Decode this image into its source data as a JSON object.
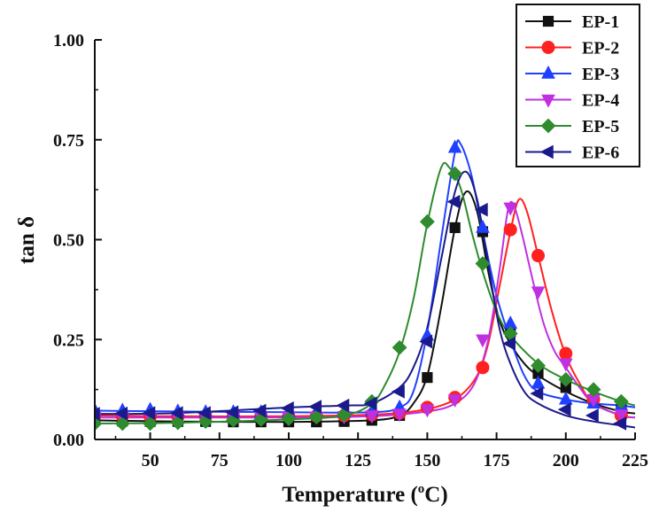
{
  "chart_data": {
    "type": "line",
    "xlabel": "Temperature (",
    "xlabel_sup": "o",
    "xlabel_unit": "C)",
    "ylabel": "tan δ",
    "xlim": [
      30,
      225
    ],
    "ylim": [
      0,
      1.0
    ],
    "x_ticks": [
      50,
      75,
      100,
      125,
      150,
      175,
      200,
      225
    ],
    "x_tick_labels": [
      "50",
      "75",
      "100",
      "125",
      "150",
      "175",
      "200",
      "225"
    ],
    "y_ticks": [
      0,
      0.25,
      0.5,
      0.75,
      1.0
    ],
    "y_tick_labels": [
      "0.00",
      "0.25",
      "0.50",
      "0.75",
      "1.00"
    ],
    "legend_position": "top-right",
    "series": [
      {
        "name": "EP-1",
        "color": "#111111",
        "marker": "square",
        "curve": [
          [
            30,
            0.048
          ],
          [
            60,
            0.045
          ],
          [
            100,
            0.044
          ],
          [
            130,
            0.048
          ],
          [
            140,
            0.06
          ],
          [
            145,
            0.09
          ],
          [
            150,
            0.16
          ],
          [
            155,
            0.33
          ],
          [
            160,
            0.53
          ],
          [
            164,
            0.62
          ],
          [
            168,
            0.57
          ],
          [
            172,
            0.42
          ],
          [
            176,
            0.3
          ],
          [
            180,
            0.24
          ],
          [
            185,
            0.19
          ],
          [
            190,
            0.16
          ],
          [
            200,
            0.12
          ],
          [
            210,
            0.09
          ],
          [
            220,
            0.07
          ],
          [
            225,
            0.065
          ]
        ],
        "points": [
          [
            30,
            0.048
          ],
          [
            40,
            0.046
          ],
          [
            50,
            0.045
          ],
          [
            60,
            0.045
          ],
          [
            70,
            0.045
          ],
          [
            80,
            0.044
          ],
          [
            90,
            0.044
          ],
          [
            100,
            0.044
          ],
          [
            110,
            0.044
          ],
          [
            120,
            0.045
          ],
          [
            130,
            0.048
          ],
          [
            140,
            0.06
          ],
          [
            150,
            0.155
          ],
          [
            160,
            0.53
          ],
          [
            170,
            0.52
          ],
          [
            180,
            0.27
          ],
          [
            190,
            0.165
          ],
          [
            200,
            0.13
          ],
          [
            210,
            0.1
          ],
          [
            220,
            0.075
          ]
        ]
      },
      {
        "name": "EP-2",
        "color": "#ff2020",
        "marker": "circle",
        "curve": [
          [
            30,
            0.06
          ],
          [
            60,
            0.058
          ],
          [
            100,
            0.058
          ],
          [
            130,
            0.062
          ],
          [
            145,
            0.07
          ],
          [
            155,
            0.085
          ],
          [
            162,
            0.11
          ],
          [
            168,
            0.16
          ],
          [
            172,
            0.24
          ],
          [
            176,
            0.38
          ],
          [
            180,
            0.52
          ],
          [
            183,
            0.6
          ],
          [
            186,
            0.57
          ],
          [
            190,
            0.46
          ],
          [
            195,
            0.32
          ],
          [
            200,
            0.21
          ],
          [
            205,
            0.14
          ],
          [
            210,
            0.09
          ],
          [
            220,
            0.06
          ],
          [
            225,
            0.055
          ]
        ],
        "points": [
          [
            30,
            0.06
          ],
          [
            40,
            0.059
          ],
          [
            50,
            0.058
          ],
          [
            60,
            0.058
          ],
          [
            70,
            0.058
          ],
          [
            80,
            0.058
          ],
          [
            90,
            0.058
          ],
          [
            100,
            0.058
          ],
          [
            110,
            0.059
          ],
          [
            120,
            0.06
          ],
          [
            130,
            0.062
          ],
          [
            140,
            0.066
          ],
          [
            150,
            0.08
          ],
          [
            160,
            0.105
          ],
          [
            170,
            0.18
          ],
          [
            180,
            0.525
          ],
          [
            190,
            0.46
          ],
          [
            200,
            0.215
          ],
          [
            210,
            0.1
          ],
          [
            220,
            0.06
          ]
        ]
      },
      {
        "name": "EP-3",
        "color": "#2040ff",
        "marker": "triangle-up",
        "curve": [
          [
            30,
            0.072
          ],
          [
            60,
            0.07
          ],
          [
            100,
            0.068
          ],
          [
            130,
            0.068
          ],
          [
            140,
            0.08
          ],
          [
            145,
            0.12
          ],
          [
            150,
            0.27
          ],
          [
            155,
            0.5
          ],
          [
            160,
            0.72
          ],
          [
            162,
            0.74
          ],
          [
            166,
            0.66
          ],
          [
            170,
            0.52
          ],
          [
            175,
            0.36
          ],
          [
            180,
            0.25
          ],
          [
            185,
            0.16
          ],
          [
            190,
            0.12
          ],
          [
            200,
            0.1
          ],
          [
            210,
            0.09
          ],
          [
            220,
            0.085
          ],
          [
            225,
            0.08
          ]
        ],
        "points": [
          [
            30,
            0.072
          ],
          [
            40,
            0.072
          ],
          [
            50,
            0.074
          ],
          [
            60,
            0.07
          ],
          [
            70,
            0.068
          ],
          [
            80,
            0.068
          ],
          [
            90,
            0.068
          ],
          [
            100,
            0.068
          ],
          [
            110,
            0.068
          ],
          [
            120,
            0.068
          ],
          [
            130,
            0.07
          ],
          [
            140,
            0.08
          ],
          [
            150,
            0.26
          ],
          [
            160,
            0.73
          ],
          [
            170,
            0.53
          ],
          [
            180,
            0.29
          ],
          [
            190,
            0.14
          ],
          [
            200,
            0.1
          ],
          [
            210,
            0.09
          ],
          [
            220,
            0.085
          ]
        ]
      },
      {
        "name": "EP-4",
        "color": "#c030e0",
        "marker": "triangle-down",
        "curve": [
          [
            30,
            0.055
          ],
          [
            60,
            0.055
          ],
          [
            100,
            0.055
          ],
          [
            130,
            0.058
          ],
          [
            150,
            0.07
          ],
          [
            160,
            0.09
          ],
          [
            167,
            0.14
          ],
          [
            172,
            0.25
          ],
          [
            176,
            0.42
          ],
          [
            179,
            0.57
          ],
          [
            181,
            0.59
          ],
          [
            184,
            0.52
          ],
          [
            188,
            0.4
          ],
          [
            192,
            0.29
          ],
          [
            196,
            0.22
          ],
          [
            200,
            0.18
          ],
          [
            205,
            0.13
          ],
          [
            210,
            0.09
          ],
          [
            220,
            0.06
          ],
          [
            225,
            0.055
          ]
        ],
        "points": [
          [
            30,
            0.055
          ],
          [
            40,
            0.055
          ],
          [
            50,
            0.055
          ],
          [
            60,
            0.055
          ],
          [
            70,
            0.055
          ],
          [
            80,
            0.055
          ],
          [
            90,
            0.055
          ],
          [
            100,
            0.056
          ],
          [
            110,
            0.057
          ],
          [
            120,
            0.058
          ],
          [
            130,
            0.06
          ],
          [
            140,
            0.064
          ],
          [
            150,
            0.075
          ],
          [
            160,
            0.1
          ],
          [
            170,
            0.25
          ],
          [
            180,
            0.58
          ],
          [
            190,
            0.37
          ],
          [
            200,
            0.19
          ],
          [
            210,
            0.1
          ],
          [
            220,
            0.062
          ]
        ]
      },
      {
        "name": "EP-5",
        "color": "#2e8b2e",
        "marker": "diamond",
        "curve": [
          [
            30,
            0.04
          ],
          [
            60,
            0.042
          ],
          [
            100,
            0.05
          ],
          [
            120,
            0.06
          ],
          [
            130,
            0.09
          ],
          [
            135,
            0.14
          ],
          [
            140,
            0.22
          ],
          [
            145,
            0.35
          ],
          [
            150,
            0.54
          ],
          [
            155,
            0.68
          ],
          [
            158,
            0.68
          ],
          [
            162,
            0.63
          ],
          [
            166,
            0.52
          ],
          [
            170,
            0.42
          ],
          [
            175,
            0.32
          ],
          [
            180,
            0.26
          ],
          [
            190,
            0.19
          ],
          [
            200,
            0.15
          ],
          [
            210,
            0.12
          ],
          [
            220,
            0.095
          ],
          [
            225,
            0.085
          ]
        ],
        "points": [
          [
            30,
            0.04
          ],
          [
            40,
            0.04
          ],
          [
            50,
            0.04
          ],
          [
            60,
            0.042
          ],
          [
            70,
            0.045
          ],
          [
            80,
            0.048
          ],
          [
            90,
            0.05
          ],
          [
            100,
            0.052
          ],
          [
            110,
            0.056
          ],
          [
            120,
            0.062
          ],
          [
            130,
            0.095
          ],
          [
            140,
            0.23
          ],
          [
            150,
            0.545
          ],
          [
            160,
            0.665
          ],
          [
            170,
            0.44
          ],
          [
            180,
            0.265
          ],
          [
            190,
            0.185
          ],
          [
            200,
            0.15
          ],
          [
            210,
            0.125
          ],
          [
            220,
            0.095
          ]
        ]
      },
      {
        "name": "EP-6",
        "color": "#1a1a8c",
        "marker": "triangle-left",
        "curve": [
          [
            30,
            0.064
          ],
          [
            60,
            0.066
          ],
          [
            100,
            0.08
          ],
          [
            120,
            0.085
          ],
          [
            130,
            0.09
          ],
          [
            140,
            0.13
          ],
          [
            145,
            0.18
          ],
          [
            150,
            0.28
          ],
          [
            155,
            0.45
          ],
          [
            160,
            0.62
          ],
          [
            164,
            0.67
          ],
          [
            168,
            0.6
          ],
          [
            172,
            0.44
          ],
          [
            176,
            0.28
          ],
          [
            180,
            0.19
          ],
          [
            185,
            0.12
          ],
          [
            190,
            0.09
          ],
          [
            200,
            0.06
          ],
          [
            210,
            0.045
          ],
          [
            220,
            0.035
          ],
          [
            225,
            0.03
          ]
        ],
        "points": [
          [
            30,
            0.064
          ],
          [
            40,
            0.065
          ],
          [
            50,
            0.066
          ],
          [
            60,
            0.066
          ],
          [
            70,
            0.066
          ],
          [
            80,
            0.068
          ],
          [
            90,
            0.072
          ],
          [
            100,
            0.078
          ],
          [
            110,
            0.082
          ],
          [
            120,
            0.085
          ],
          [
            130,
            0.09
          ],
          [
            140,
            0.12
          ],
          [
            150,
            0.245
          ],
          [
            160,
            0.595
          ],
          [
            170,
            0.575
          ],
          [
            180,
            0.24
          ],
          [
            190,
            0.115
          ],
          [
            200,
            0.075
          ],
          [
            210,
            0.06
          ],
          [
            220,
            0.04
          ]
        ]
      }
    ]
  }
}
